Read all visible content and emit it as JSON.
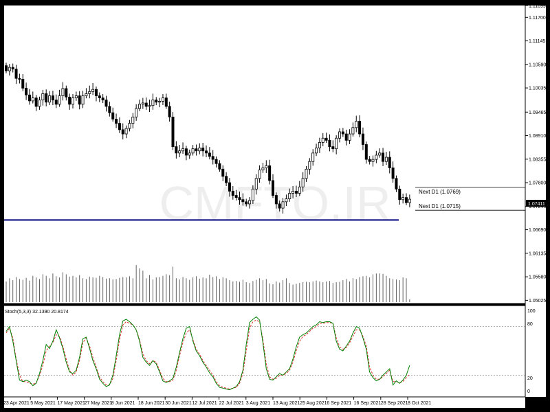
{
  "watermark": "CMFTO.IR",
  "price_axis_labels": [
    "1.11699",
    "1.11700",
    "1.11145",
    "1.10590",
    "1.10035",
    "1.09465",
    "1.08910",
    "1.08355",
    "1.07800",
    "1.07245",
    "1.06690",
    "1.06135",
    "1.05580",
    "1.05025"
  ],
  "current_price": "1.07411",
  "date_labels": [
    "23 Apr 2021",
    "5 May 2021",
    "17 May 2021",
    "27 May 2021",
    "8 Jun 2021",
    "18 Jun 2021",
    "30 Jun 2021",
    "12 Jul 2021",
    "22 Jul 2021",
    "3 Aug 2021",
    "13 Aug 2021",
    "25 Aug 2021",
    "6 Sep 2021",
    "16 Sep 2021",
    "28 Sep 2021",
    "8 Oct 2021"
  ],
  "annotations": {
    "next_upper": "Next D1 (1.0769)",
    "next_lower": "Next D1 (1.0715)",
    "next_upper_value": 1.0769,
    "next_lower_value": 1.0715,
    "support_value": 1.0692
  },
  "stoch": {
    "label": "Stoch(5,3,3) 32.1390 20.8174",
    "levels": [
      "100",
      "80",
      "20",
      "0"
    ],
    "main_color": "#008000",
    "signal_color": "#e03030"
  },
  "colors": {
    "background": "#ffffff",
    "candle_outline": "#000000",
    "support_line": "#000080",
    "volume": "#606060"
  },
  "chart_data": {
    "type": "candlestick",
    "price_range": [
      1.0495,
      1.1198
    ],
    "stoch_range": [
      0,
      100
    ],
    "close": [
      1.1044,
      1.1052,
      1.1048,
      1.1026,
      1.1024,
      1.1003,
      1.0987,
      1.0973,
      1.098,
      1.096,
      1.0975,
      1.099,
      1.097,
      1.0985,
      1.0975,
      1.0965,
      1.0985,
      1.1002,
      1.0982,
      1.0965,
      1.098,
      1.0985,
      1.0965,
      1.0985,
      1.099,
      1.0995,
      1.1,
      1.0985,
      1.098,
      1.0975,
      1.096,
      1.0945,
      1.093,
      1.092,
      1.0905,
      1.0895,
      1.0908,
      1.092,
      1.0935,
      1.0955,
      1.0965,
      1.0968,
      1.096,
      1.0962,
      1.0975,
      1.097,
      1.0972,
      1.098,
      1.096,
      1.0935,
      1.0865,
      1.085,
      1.0855,
      1.086,
      1.0845,
      1.085,
      1.086,
      1.0855,
      1.0862,
      1.0855,
      1.085,
      1.0842,
      1.0835,
      1.0825,
      1.0812,
      1.0795,
      1.078,
      1.076,
      1.075,
      1.0745,
      1.074,
      1.0735,
      1.073,
      1.0738,
      1.0765,
      1.079,
      1.081,
      1.0815,
      1.082,
      1.0785,
      1.075,
      1.073,
      1.072,
      1.0735,
      1.0742,
      1.0755,
      1.076,
      1.0755,
      1.077,
      1.079,
      1.0812,
      1.083,
      1.085,
      1.0862,
      1.0875,
      1.0885,
      1.088,
      1.0865,
      1.086,
      1.0885,
      1.09,
      1.0895,
      1.088,
      1.0895,
      1.091,
      1.0925,
      1.0895,
      1.087,
      1.0835,
      1.083,
      1.0835,
      1.0845,
      1.085,
      1.083,
      1.084,
      1.0815,
      1.079,
      1.0765,
      1.074,
      1.0745,
      1.0733,
      1.0741
    ],
    "volume_range": [
      0,
      1
    ],
    "volume": [
      0.52,
      0.6,
      0.55,
      0.63,
      0.58,
      0.56,
      0.61,
      0.54,
      0.66,
      0.62,
      0.58,
      0.7,
      0.66,
      0.6,
      0.72,
      0.65,
      0.62,
      0.75,
      0.7,
      0.64,
      0.66,
      0.62,
      0.68,
      0.6,
      0.58,
      0.64,
      0.62,
      0.61,
      0.66,
      0.63,
      0.59,
      0.6,
      0.57,
      0.58,
      0.61,
      0.63,
      0.62,
      0.65,
      0.6,
      0.93,
      0.85,
      0.79,
      0.6,
      0.68,
      0.57,
      0.62,
      0.63,
      0.66,
      0.7,
      0.68,
      0.89,
      0.6,
      0.57,
      0.63,
      0.6,
      0.56,
      0.62,
      0.65,
      0.59,
      0.62,
      0.6,
      0.69,
      0.63,
      0.65,
      0.58,
      0.62,
      0.6,
      0.55,
      0.52,
      0.53,
      0.51,
      0.56,
      0.5,
      0.48,
      0.53,
      0.56,
      0.6,
      0.55,
      0.58,
      0.47,
      0.45,
      0.52,
      0.49,
      0.55,
      0.6,
      0.48,
      0.44,
      0.46,
      0.48,
      0.5,
      0.51,
      0.5,
      0.52,
      0.54,
      0.52,
      0.5,
      0.52,
      0.53,
      0.48,
      0.5,
      0.51,
      0.55,
      0.58,
      0.52,
      0.6,
      0.58,
      0.63,
      0.65,
      0.66,
      0.62,
      0.7,
      0.72,
      0.72,
      0.71,
      0.66,
      0.6,
      0.58,
      0.57,
      0.55,
      0.62,
      0.6,
      0.07
    ],
    "stoch_main": [
      74,
      80,
      62,
      38,
      14,
      12,
      14,
      12,
      7,
      10,
      22,
      38,
      58,
      53,
      62,
      76,
      66,
      53,
      36,
      24,
      22,
      26,
      42,
      65,
      67,
      53,
      38,
      28,
      15,
      10,
      6,
      8,
      20,
      44,
      70,
      87,
      89,
      86,
      82,
      76,
      62,
      42,
      36,
      32,
      38,
      34,
      24,
      13,
      11,
      13,
      16,
      30,
      48,
      65,
      78,
      80,
      62,
      50,
      44,
      36,
      30,
      23,
      18,
      10,
      5,
      4,
      3,
      2,
      4,
      6,
      12,
      26,
      58,
      85,
      89,
      92,
      88,
      60,
      28,
      15,
      14,
      18,
      22,
      20,
      24,
      28,
      40,
      55,
      67,
      70,
      72,
      76,
      80,
      82,
      86,
      85,
      86,
      86,
      84,
      62,
      52,
      50,
      56,
      62,
      72,
      80,
      78,
      66,
      52,
      24,
      17,
      13,
      15,
      20,
      24,
      28,
      8,
      13,
      10,
      14,
      20,
      32
    ],
    "stoch_signal": [
      72,
      78,
      66,
      40,
      20,
      12,
      12,
      10,
      9,
      10,
      20,
      32,
      50,
      56,
      60,
      70,
      68,
      56,
      40,
      26,
      20,
      24,
      38,
      60,
      66,
      56,
      42,
      30,
      18,
      12,
      8,
      8,
      16,
      38,
      64,
      82,
      86,
      84,
      82,
      76,
      64,
      46,
      38,
      34,
      38,
      36,
      26,
      16,
      12,
      12,
      14,
      26,
      44,
      60,
      72,
      76,
      64,
      52,
      46,
      38,
      32,
      26,
      20,
      12,
      7,
      5,
      4,
      3,
      4,
      5,
      10,
      22,
      50,
      78,
      86,
      88,
      86,
      64,
      34,
      18,
      15,
      16,
      20,
      20,
      22,
      26,
      36,
      50,
      62,
      68,
      70,
      74,
      78,
      80,
      84,
      84,
      85,
      85,
      84,
      66,
      55,
      52,
      54,
      60,
      68,
      76,
      76,
      68,
      56,
      30,
      20,
      15,
      15,
      18,
      22,
      26,
      12,
      12,
      11,
      12,
      17,
      21
    ]
  }
}
